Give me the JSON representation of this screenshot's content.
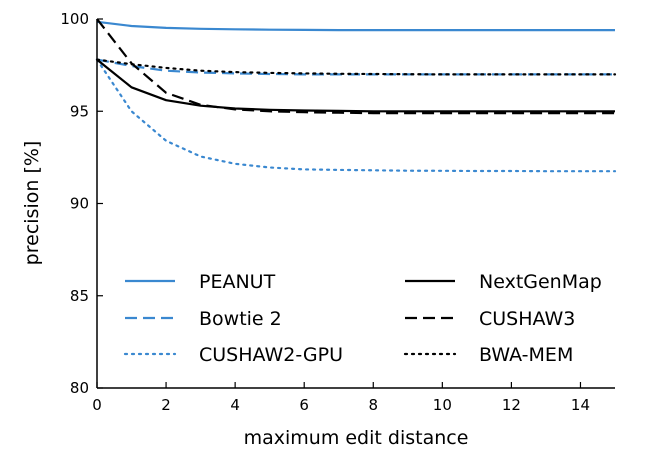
{
  "chart_data": {
    "type": "line",
    "title": "",
    "xlabel": "maximum edit distance",
    "ylabel": "precision [%]",
    "xlim": [
      0,
      15
    ],
    "ylim": [
      80,
      100
    ],
    "xticks": [
      0,
      2,
      4,
      6,
      8,
      10,
      12,
      14
    ],
    "yticks": [
      80,
      85,
      90,
      95,
      100
    ],
    "grid": false,
    "legend_position": "lower center, two columns",
    "x": [
      0,
      1,
      2,
      3,
      4,
      5,
      6,
      7,
      8,
      9,
      10,
      11,
      12,
      13,
      14,
      15
    ],
    "series": [
      {
        "name": "PEANUT",
        "color": "#3a88d0",
        "dash": "solid",
        "values": [
          99.85,
          99.62,
          99.52,
          99.47,
          99.44,
          99.42,
          99.41,
          99.4,
          99.4,
          99.4,
          99.4,
          99.4,
          99.4,
          99.4,
          99.4,
          99.4
        ]
      },
      {
        "name": "Bowtie 2",
        "color": "#3a88d0",
        "dash": "dashed",
        "values": [
          97.8,
          97.45,
          97.2,
          97.1,
          97.05,
          97.02,
          97.0,
          97.0,
          97.0,
          97.0,
          97.0,
          97.0,
          97.0,
          97.0,
          97.0,
          97.0
        ]
      },
      {
        "name": "CUSHAW2-GPU",
        "color": "#3a88d0",
        "dash": "dotted",
        "values": [
          97.8,
          95.0,
          93.4,
          92.55,
          92.15,
          91.95,
          91.85,
          91.82,
          91.8,
          91.78,
          91.77,
          91.76,
          91.76,
          91.75,
          91.75,
          91.75
        ]
      },
      {
        "name": "NextGenMap",
        "color": "#000000",
        "dash": "solid",
        "values": [
          97.8,
          96.3,
          95.6,
          95.3,
          95.15,
          95.08,
          95.04,
          95.02,
          95.0,
          95.0,
          95.0,
          95.0,
          95.0,
          95.0,
          95.0,
          95.0
        ]
      },
      {
        "name": "CUSHAW3",
        "color": "#000000",
        "dash": "dashed",
        "values": [
          100.0,
          97.6,
          96.0,
          95.35,
          95.1,
          95.0,
          94.95,
          94.92,
          94.9,
          94.9,
          94.9,
          94.9,
          94.9,
          94.9,
          94.9,
          94.9
        ]
      },
      {
        "name": "BWA-MEM",
        "color": "#000000",
        "dash": "dotted",
        "values": [
          97.8,
          97.55,
          97.35,
          97.2,
          97.12,
          97.08,
          97.05,
          97.03,
          97.02,
          97.01,
          97.0,
          97.0,
          97.0,
          97.0,
          97.0,
          97.0
        ]
      }
    ]
  }
}
